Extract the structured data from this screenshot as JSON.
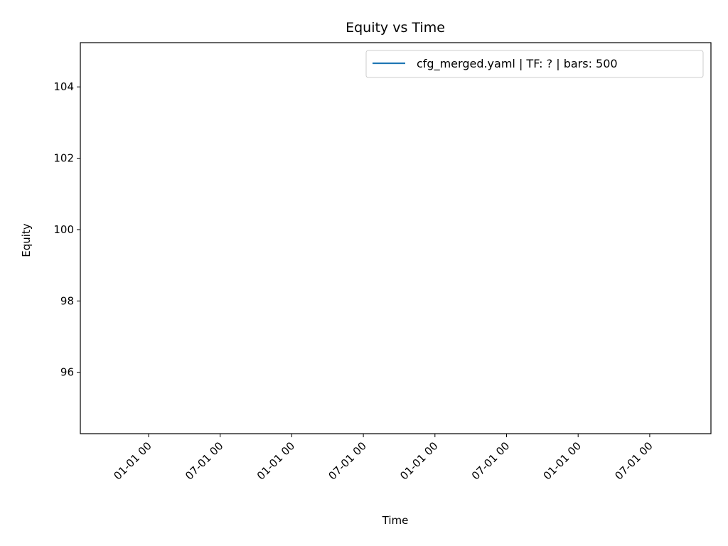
{
  "chart_data": {
    "type": "line",
    "title": "Equity vs Time",
    "xlabel": "Time",
    "ylabel": "Equity",
    "ylim": [
      94.28,
      105.24
    ],
    "yticks": [
      96,
      98,
      100,
      102,
      104
    ],
    "xtick_labels": [
      "01-01 00",
      "07-01 00",
      "01-01 00",
      "07-01 00",
      "01-01 00",
      "07-01 00",
      "01-01 00",
      "07-01 00"
    ],
    "grid": false,
    "legend_position": "top-right",
    "series": [
      {
        "name": "cfg_merged.yaml | TF: ? | bars: 500",
        "color": "#1f77b4",
        "x": [],
        "y": []
      }
    ]
  }
}
